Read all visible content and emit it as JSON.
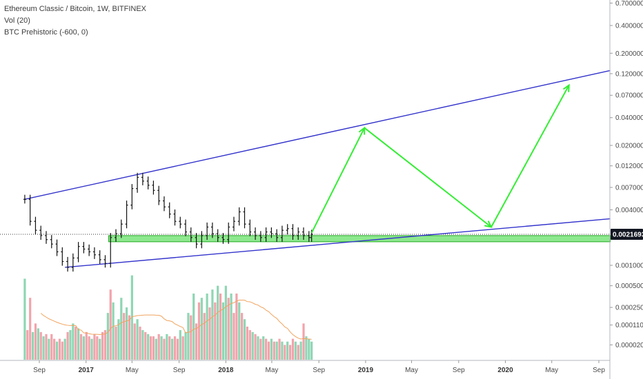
{
  "legend": {
    "symbol": "Ethereum Classic / Bitcoin, 1W, BITFINEX",
    "volume": "Vol (20)",
    "indicator": "BTC Prehistoric (-600, 0)"
  },
  "colors": {
    "candle": "#111111",
    "channel": "#3333cc",
    "arrow": "#33ee33",
    "support_fill": "#8ee88e",
    "support_stroke": "#22aa22",
    "vol_up": "#8fd6b4",
    "vol_down": "#f2a3ab",
    "vol_ma": "#f0a35e",
    "badge": "#131722"
  },
  "chart_data": {
    "type": "candlestick",
    "price_axis": {
      "scale": "log",
      "ticks": [
        "0.7000000",
        "0.4000000",
        "0.2000000",
        "0.1200000",
        "0.0700000",
        "0.0400000",
        "0.0200000",
        "0.0120000",
        "0.0070000",
        "0.0040000",
        "0.0010000"
      ],
      "current_price": "0.0021693"
    },
    "volume_axis": {
      "ticks": [
        "0.0005000",
        "0.0002500",
        "0.0001100",
        "0.0000200"
      ]
    },
    "time_axis": {
      "ticks": [
        {
          "label": "Sep",
          "date": "2016-09-01"
        },
        {
          "label": "2017",
          "date": "2017-01-01",
          "year": true
        },
        {
          "label": "May",
          "date": "2017-05-01"
        },
        {
          "label": "Sep",
          "date": "2017-09-01"
        },
        {
          "label": "2018",
          "date": "2018-01-01",
          "year": true
        },
        {
          "label": "May",
          "date": "2018-05-01"
        },
        {
          "label": "Sep",
          "date": "2018-09-01"
        },
        {
          "label": "2019",
          "date": "2019-01-01",
          "year": true
        },
        {
          "label": "May",
          "date": "2019-05-01"
        },
        {
          "label": "Sep",
          "date": "2019-09-01"
        },
        {
          "label": "2020",
          "date": "2020-01-01",
          "year": true
        },
        {
          "label": "May",
          "date": "2020-05-01"
        },
        {
          "label": "Sep",
          "date": "2020-09-01"
        }
      ]
    },
    "price_series": [
      {
        "date": "2016-07-25",
        "close": 0.0052
      },
      {
        "date": "2016-08-08",
        "close": 0.003
      },
      {
        "date": "2016-08-22",
        "close": 0.0024
      },
      {
        "date": "2016-09-05",
        "close": 0.0021
      },
      {
        "date": "2016-09-19",
        "close": 0.0019
      },
      {
        "date": "2016-10-03",
        "close": 0.0017
      },
      {
        "date": "2016-10-17",
        "close": 0.0014
      },
      {
        "date": "2016-10-31",
        "close": 0.0011
      },
      {
        "date": "2016-11-14",
        "close": 0.00095
      },
      {
        "date": "2016-11-28",
        "close": 0.0012
      },
      {
        "date": "2016-12-12",
        "close": 0.0016
      },
      {
        "date": "2016-12-26",
        "close": 0.0015
      },
      {
        "date": "2017-01-09",
        "close": 0.0014
      },
      {
        "date": "2017-01-23",
        "close": 0.0013
      },
      {
        "date": "2017-02-06",
        "close": 0.00115
      },
      {
        "date": "2017-02-20",
        "close": 0.00105
      },
      {
        "date": "2017-03-06",
        "close": 0.002
      },
      {
        "date": "2017-03-20",
        "close": 0.0022
      },
      {
        "date": "2017-04-03",
        "close": 0.0028
      },
      {
        "date": "2017-04-17",
        "close": 0.0045
      },
      {
        "date": "2017-05-01",
        "close": 0.0068
      },
      {
        "date": "2017-05-15",
        "close": 0.009
      },
      {
        "date": "2017-05-29",
        "close": 0.0082
      },
      {
        "date": "2017-06-12",
        "close": 0.0074
      },
      {
        "date": "2017-06-26",
        "close": 0.0065
      },
      {
        "date": "2017-07-10",
        "close": 0.005
      },
      {
        "date": "2017-07-24",
        "close": 0.0043
      },
      {
        "date": "2017-08-07",
        "close": 0.0036
      },
      {
        "date": "2017-08-21",
        "close": 0.003
      },
      {
        "date": "2017-09-04",
        "close": 0.0028
      },
      {
        "date": "2017-09-18",
        "close": 0.0023
      },
      {
        "date": "2017-10-02",
        "close": 0.002
      },
      {
        "date": "2017-10-16",
        "close": 0.0017
      },
      {
        "date": "2017-10-30",
        "close": 0.0021
      },
      {
        "date": "2017-11-13",
        "close": 0.0026
      },
      {
        "date": "2017-11-27",
        "close": 0.0022
      },
      {
        "date": "2017-12-11",
        "close": 0.002
      },
      {
        "date": "2017-12-25",
        "close": 0.0019
      },
      {
        "date": "2018-01-08",
        "close": 0.0026
      },
      {
        "date": "2018-01-22",
        "close": 0.003
      },
      {
        "date": "2018-02-05",
        "close": 0.0038
      },
      {
        "date": "2018-02-19",
        "close": 0.0028
      },
      {
        "date": "2018-03-05",
        "close": 0.0023
      },
      {
        "date": "2018-03-19",
        "close": 0.0021
      },
      {
        "date": "2018-04-02",
        "close": 0.002
      },
      {
        "date": "2018-04-16",
        "close": 0.0023
      },
      {
        "date": "2018-04-30",
        "close": 0.0022
      },
      {
        "date": "2018-05-14",
        "close": 0.002
      },
      {
        "date": "2018-05-28",
        "close": 0.0024
      },
      {
        "date": "2018-06-11",
        "close": 0.0025
      },
      {
        "date": "2018-06-25",
        "close": 0.0021
      },
      {
        "date": "2018-07-09",
        "close": 0.0023
      },
      {
        "date": "2018-07-23",
        "close": 0.0021
      },
      {
        "date": "2018-08-06",
        "close": 0.002
      },
      {
        "date": "2018-08-13",
        "close": 0.00217
      }
    ],
    "volume_series": [
      {
        "date": "2016-07-25",
        "v": 0.0006,
        "up": true
      },
      {
        "date": "2016-08-01",
        "v": 8e-05,
        "up": false
      },
      {
        "date": "2016-08-08",
        "v": 0.00035,
        "up": false
      },
      {
        "date": "2016-08-15",
        "v": 7e-05,
        "up": true
      },
      {
        "date": "2016-08-22",
        "v": 0.00012,
        "up": false
      },
      {
        "date": "2016-08-29",
        "v": 9e-05,
        "up": true
      },
      {
        "date": "2016-09-05",
        "v": 7e-05,
        "up": false
      },
      {
        "date": "2016-09-12",
        "v": 5e-05,
        "up": true
      },
      {
        "date": "2016-09-19",
        "v": 6e-05,
        "up": false
      },
      {
        "date": "2016-09-26",
        "v": 4e-05,
        "up": true
      },
      {
        "date": "2016-10-03",
        "v": 6e-05,
        "up": false
      },
      {
        "date": "2016-10-10",
        "v": 4e-05,
        "up": false
      },
      {
        "date": "2016-10-17",
        "v": 3e-05,
        "up": true
      },
      {
        "date": "2016-10-24",
        "v": 4e-05,
        "up": false
      },
      {
        "date": "2016-10-31",
        "v": 3e-05,
        "up": false
      },
      {
        "date": "2016-11-07",
        "v": 4e-05,
        "up": true
      },
      {
        "date": "2016-11-14",
        "v": 7e-05,
        "up": false
      },
      {
        "date": "2016-11-21",
        "v": 8e-05,
        "up": true
      },
      {
        "date": "2016-11-28",
        "v": 0.00012,
        "up": true
      },
      {
        "date": "2016-12-05",
        "v": 0.0001,
        "up": false
      },
      {
        "date": "2016-12-12",
        "v": 9e-05,
        "up": true
      },
      {
        "date": "2016-12-19",
        "v": 6e-05,
        "up": false
      },
      {
        "date": "2016-12-26",
        "v": 5e-05,
        "up": true
      },
      {
        "date": "2017-01-02",
        "v": 7e-05,
        "up": false
      },
      {
        "date": "2017-01-09",
        "v": 5e-05,
        "up": false
      },
      {
        "date": "2017-01-16",
        "v": 4e-05,
        "up": true
      },
      {
        "date": "2017-01-23",
        "v": 6e-05,
        "up": false
      },
      {
        "date": "2017-01-30",
        "v": 5e-05,
        "up": false
      },
      {
        "date": "2017-02-06",
        "v": 4e-05,
        "up": true
      },
      {
        "date": "2017-02-13",
        "v": 7e-05,
        "up": false
      },
      {
        "date": "2017-02-20",
        "v": 8e-05,
        "up": false
      },
      {
        "date": "2017-02-27",
        "v": 0.0002,
        "up": true
      },
      {
        "date": "2017-03-06",
        "v": 0.00045,
        "up": false
      },
      {
        "date": "2017-03-13",
        "v": 0.0003,
        "up": true
      },
      {
        "date": "2017-03-20",
        "v": 0.0001,
        "up": false
      },
      {
        "date": "2017-03-27",
        "v": 0.00015,
        "up": true
      },
      {
        "date": "2017-04-03",
        "v": 0.00035,
        "up": true
      },
      {
        "date": "2017-04-10",
        "v": 0.0002,
        "up": false
      },
      {
        "date": "2017-04-17",
        "v": 0.00025,
        "up": true
      },
      {
        "date": "2017-04-24",
        "v": 0.00018,
        "up": false
      },
      {
        "date": "2017-05-01",
        "v": 0.00065,
        "up": true
      },
      {
        "date": "2017-05-08",
        "v": 0.00012,
        "up": false
      },
      {
        "date": "2017-05-15",
        "v": 0.00015,
        "up": true
      },
      {
        "date": "2017-05-22",
        "v": 0.0001,
        "up": false
      },
      {
        "date": "2017-05-29",
        "v": 8e-05,
        "up": true
      },
      {
        "date": "2017-06-05",
        "v": 7e-05,
        "up": false
      },
      {
        "date": "2017-06-12",
        "v": 6e-05,
        "up": true
      },
      {
        "date": "2017-06-19",
        "v": 5e-05,
        "up": false
      },
      {
        "date": "2017-06-26",
        "v": 5e-05,
        "up": false
      },
      {
        "date": "2017-07-03",
        "v": 4e-05,
        "up": true
      },
      {
        "date": "2017-07-10",
        "v": 6e-05,
        "up": false
      },
      {
        "date": "2017-07-17",
        "v": 5e-05,
        "up": true
      },
      {
        "date": "2017-07-24",
        "v": 4e-05,
        "up": false
      },
      {
        "date": "2017-07-31",
        "v": 6e-05,
        "up": true
      },
      {
        "date": "2017-08-07",
        "v": 5e-05,
        "up": false
      },
      {
        "date": "2017-08-14",
        "v": 4e-05,
        "up": true
      },
      {
        "date": "2017-08-21",
        "v": 5e-05,
        "up": false
      },
      {
        "date": "2017-08-28",
        "v": 4e-05,
        "up": false
      },
      {
        "date": "2017-09-04",
        "v": 8e-05,
        "up": true
      },
      {
        "date": "2017-09-11",
        "v": 5e-05,
        "up": false
      },
      {
        "date": "2017-09-18",
        "v": 7e-05,
        "up": true
      },
      {
        "date": "2017-09-25",
        "v": 0.0002,
        "up": true
      },
      {
        "date": "2017-10-02",
        "v": 0.00018,
        "up": false
      },
      {
        "date": "2017-10-09",
        "v": 0.0004,
        "up": true
      },
      {
        "date": "2017-10-16",
        "v": 0.00012,
        "up": false
      },
      {
        "date": "2017-10-23",
        "v": 0.0003,
        "up": false
      },
      {
        "date": "2017-10-30",
        "v": 0.00035,
        "up": true
      },
      {
        "date": "2017-11-06",
        "v": 0.0002,
        "up": false
      },
      {
        "date": "2017-11-13",
        "v": 0.0004,
        "up": true
      },
      {
        "date": "2017-11-20",
        "v": 0.00025,
        "up": false
      },
      {
        "date": "2017-11-27",
        "v": 0.00045,
        "up": true
      },
      {
        "date": "2017-12-04",
        "v": 0.0003,
        "up": false
      },
      {
        "date": "2017-12-11",
        "v": 0.0005,
        "up": true
      },
      {
        "date": "2017-12-18",
        "v": 0.0004,
        "up": false
      },
      {
        "date": "2017-12-25",
        "v": 0.0003,
        "up": true
      },
      {
        "date": "2018-01-01",
        "v": 0.0005,
        "up": true
      },
      {
        "date": "2018-01-08",
        "v": 0.00035,
        "up": false
      },
      {
        "date": "2018-01-15",
        "v": 0.0004,
        "up": true
      },
      {
        "date": "2018-01-22",
        "v": 0.0002,
        "up": false
      },
      {
        "date": "2018-01-29",
        "v": 0.0004,
        "up": false
      },
      {
        "date": "2018-02-05",
        "v": 0.0003,
        "up": true
      },
      {
        "date": "2018-02-12",
        "v": 0.0002,
        "up": false
      },
      {
        "date": "2018-02-19",
        "v": 0.00015,
        "up": true
      },
      {
        "date": "2018-02-26",
        "v": 0.0001,
        "up": false
      },
      {
        "date": "2018-03-05",
        "v": 8e-05,
        "up": false
      },
      {
        "date": "2018-03-12",
        "v": 7e-05,
        "up": true
      },
      {
        "date": "2018-03-19",
        "v": 6e-05,
        "up": false
      },
      {
        "date": "2018-03-26",
        "v": 5e-05,
        "up": true
      },
      {
        "date": "2018-04-02",
        "v": 4e-05,
        "up": false
      },
      {
        "date": "2018-04-09",
        "v": 5e-05,
        "up": true
      },
      {
        "date": "2018-04-16",
        "v": 4e-05,
        "up": false
      },
      {
        "date": "2018-04-23",
        "v": 3e-05,
        "up": false
      },
      {
        "date": "2018-04-30",
        "v": 4e-05,
        "up": true
      },
      {
        "date": "2018-05-07",
        "v": 3e-05,
        "up": false
      },
      {
        "date": "2018-05-14",
        "v": 3e-05,
        "up": true
      },
      {
        "date": "2018-05-21",
        "v": 4e-05,
        "up": false
      },
      {
        "date": "2018-05-28",
        "v": 3e-05,
        "up": true
      },
      {
        "date": "2018-06-04",
        "v": 2e-05,
        "up": false
      },
      {
        "date": "2018-06-11",
        "v": 3e-05,
        "up": true
      },
      {
        "date": "2018-06-18",
        "v": 2e-05,
        "up": false
      },
      {
        "date": "2018-06-25",
        "v": 4e-05,
        "up": false
      },
      {
        "date": "2018-07-02",
        "v": 3e-05,
        "up": true
      },
      {
        "date": "2018-07-09",
        "v": 2e-05,
        "up": false
      },
      {
        "date": "2018-07-16",
        "v": 3e-05,
        "up": true
      },
      {
        "date": "2018-07-23",
        "v": 0.00012,
        "up": false
      },
      {
        "date": "2018-07-30",
        "v": 5e-05,
        "up": true
      },
      {
        "date": "2018-08-06",
        "v": 4e-05,
        "up": true
      },
      {
        "date": "2018-08-13",
        "v": 3e-05,
        "up": true
      }
    ],
    "channel_upper": [
      {
        "date": "2016-07-25",
        "price": 0.0052
      },
      {
        "date": "2020-10-01",
        "price": 0.13
      }
    ],
    "channel_lower": [
      {
        "date": "2016-11-07",
        "price": 0.00095
      },
      {
        "date": "2020-10-01",
        "price": 0.0032
      }
    ],
    "support_zone": {
      "from": "2017-03-01",
      "to": "2020-10-01",
      "low": 0.0018,
      "high": 0.0021
    },
    "projection_path": [
      {
        "date": "2018-08-13",
        "price": 0.00225
      },
      {
        "date": "2018-12-29",
        "price": 0.031
      },
      {
        "date": "2019-11-25",
        "price": 0.0026
      },
      {
        "date": "2020-06-15",
        "price": 0.09
      }
    ]
  }
}
